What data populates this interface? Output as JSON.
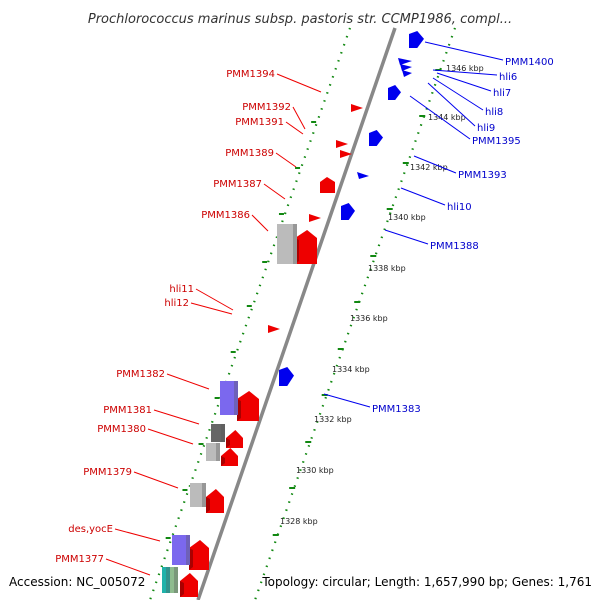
{
  "title": "Prochlorococcus marinus subsp. pastoris str. CCMP1986, compl...",
  "footer": {
    "accession": "Accession: NC_005072",
    "summary": "Topology: circular; Length: 1,657,990 bp; Genes: 1,761"
  },
  "colors": {
    "red_strand": "#ee0000",
    "blue_strand": "#0000ee",
    "backbone": "#888888",
    "ruler": "#118811",
    "cog_gray": "#bbbbbb",
    "cog_dark": "#666666",
    "cog_purple": "#7b68ee",
    "cog_teal": "#20b2aa"
  },
  "ruler_labels": [
    "1346 kbp",
    "1344 kbp",
    "1342 kbp",
    "1340 kbp",
    "1338 kbp",
    "1336 kbp",
    "1334 kbp",
    "1332 kbp",
    "1330 kbp",
    "1328 kbp"
  ],
  "left_genes": [
    "PMM1394",
    "PMM1392",
    "PMM1391",
    "PMM1389",
    "PMM1387",
    "PMM1386",
    "hli11",
    "hli12",
    "PMM1382",
    "PMM1381",
    "PMM1380",
    "PMM1379",
    "des,yocE",
    "PMM1377"
  ],
  "right_genes": [
    "PMM1400",
    "hli6",
    "hli7",
    "hli8",
    "hli9",
    "PMM1395",
    "PMM1393",
    "hli10",
    "PMM1388",
    "PMM1383"
  ]
}
